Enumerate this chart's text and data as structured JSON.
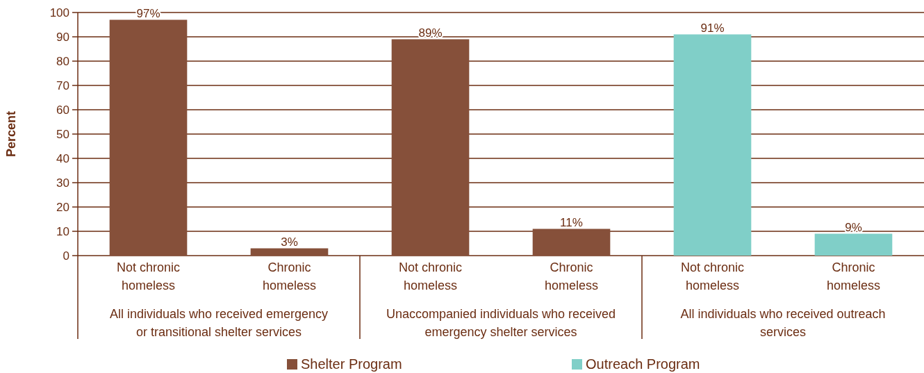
{
  "chart_data": {
    "type": "bar",
    "ylabel": "Percent",
    "categories": [
      "Not chronic homeless",
      "Chronic homeless",
      "Not chronic homeless",
      "Chronic homeless",
      "Not chronic homeless",
      "Chronic homeless"
    ],
    "series": [
      {
        "name": "Shelter Program",
        "color": "#86503a",
        "values": [
          97,
          3,
          89,
          11,
          null,
          null
        ],
        "value_labels": [
          "97%",
          "3%",
          "89%",
          "11%",
          null,
          null
        ]
      },
      {
        "name": "Outreach Program",
        "color": "#80cfc8",
        "values": [
          null,
          null,
          null,
          null,
          91,
          9
        ],
        "value_labels": [
          null,
          null,
          null,
          null,
          "91%",
          "9%"
        ]
      }
    ],
    "ylim": [
      0,
      100
    ],
    "yticks": [
      0,
      10,
      20,
      30,
      40,
      50,
      60,
      70,
      80,
      90,
      100
    ],
    "grid": "y",
    "legend": "bottom",
    "annotations": [
      "All individuals who received emergency or transitional shelter services",
      "Unaccompanied individuals who received emergency shelter services",
      "All individuals who received outreach services"
    ]
  }
}
